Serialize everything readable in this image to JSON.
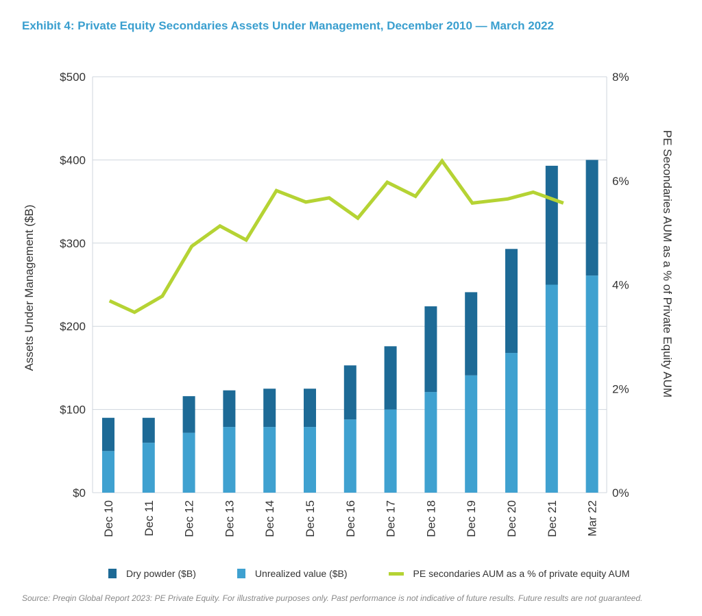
{
  "chart_data": {
    "type": "bar+line",
    "title": "Exhibit 4: Private Equity Secondaries Assets Under Management, December 2010 — March 2022",
    "categories": [
      "Dec 10",
      "Dec 11",
      "Dec 12",
      "Dec 13",
      "Dec 14",
      "Dec 15",
      "Dec 16",
      "Dec 17",
      "Dec 18",
      "Dec 19",
      "Dec 20",
      "Dec 21",
      "Mar 22"
    ],
    "ylabel": "Assets Under Management ($B)",
    "ylabel_right": "PE Secondaries AUM as a % of Private Equity AUM",
    "ylim": [
      0,
      500
    ],
    "ylim_right": [
      0,
      8
    ],
    "yticks": [
      "$0",
      "$100",
      "$200",
      "$300",
      "$400",
      "$500"
    ],
    "yticks_right": [
      "0%",
      "2%",
      "4%",
      "6%",
      "8%"
    ],
    "grid": true,
    "stacked": true,
    "series": [
      {
        "name": "Dry powder ($B)",
        "color": "#1d6a96",
        "axis": "left",
        "values": [
          40,
          30,
          44,
          44,
          46,
          46,
          65,
          76,
          103,
          100,
          125,
          143,
          139
        ]
      },
      {
        "name": "Unrealized value ($B)",
        "color": "#3fa1d0",
        "axis": "left",
        "values": [
          50,
          60,
          72,
          79,
          79,
          79,
          88,
          100,
          121,
          141,
          168,
          250,
          261
        ]
      },
      {
        "name": "PE secondaries AUM as a % of private equity AUM",
        "color": "#b5d334",
        "axis": "right",
        "type": "line",
        "x": [
          0.03,
          0.65,
          1.34,
          2.07,
          2.77,
          3.42,
          4.17,
          4.9,
          5.48,
          6.19,
          6.92,
          7.62,
          8.28,
          9.03,
          9.91,
          10.54,
          11.29
        ],
        "values": [
          3.69,
          3.47,
          3.78,
          4.74,
          5.13,
          4.86,
          5.81,
          5.59,
          5.67,
          5.28,
          5.97,
          5.7,
          6.38,
          5.57,
          5.65,
          5.78,
          5.57
        ]
      }
    ],
    "legend_position": "bottom",
    "source": "Source: Preqin Global Report 2023: PE Private Equity. For illustrative purposes only. Past performance is not indicative of future results. Future results are not guaranteed."
  }
}
